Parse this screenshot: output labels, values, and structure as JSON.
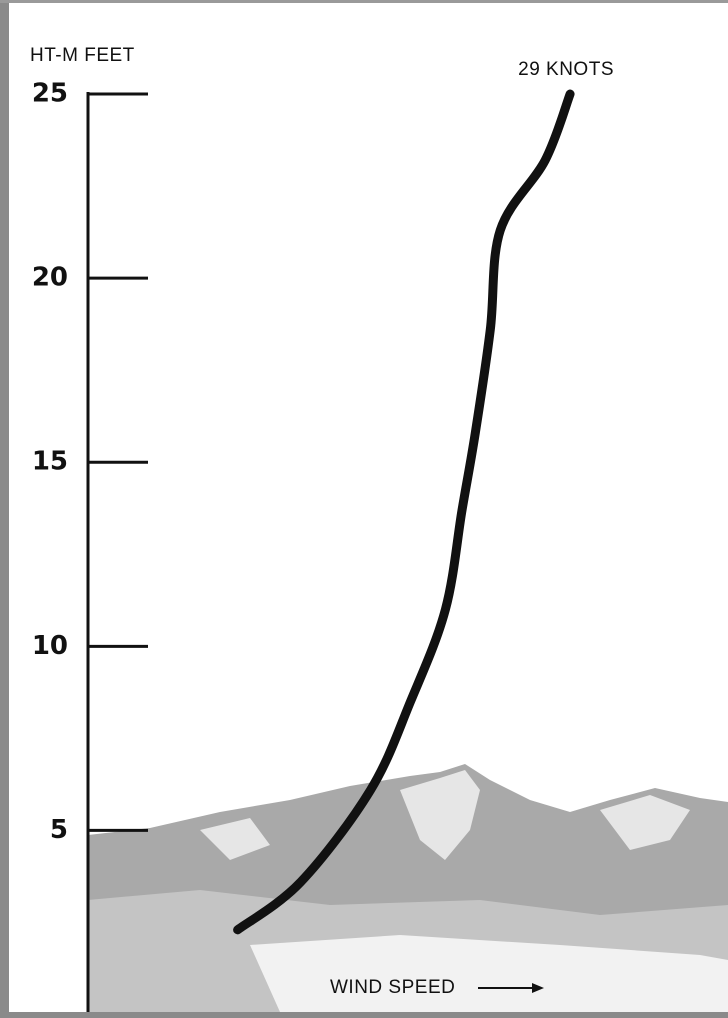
{
  "chart_data": {
    "type": "line",
    "y_label": "HT-M FEET",
    "x_label": "WIND SPEED",
    "annotation": "29 KNOTS",
    "ylim": [
      0,
      27.5
    ],
    "yticks": [
      5,
      10,
      15,
      20,
      25
    ],
    "xlim": [
      0,
      38.5
    ],
    "color": "#111111",
    "x": [
      9.0,
      12.8,
      17.0,
      19.4,
      21.5,
      22.5,
      23.3,
      24.2,
      24.8,
      27.5,
      29
    ],
    "values": [
      2.3,
      3.6,
      6.1,
      8.5,
      11.0,
      13.7,
      15.8,
      18.6,
      21.3,
      23.2,
      25
    ]
  }
}
